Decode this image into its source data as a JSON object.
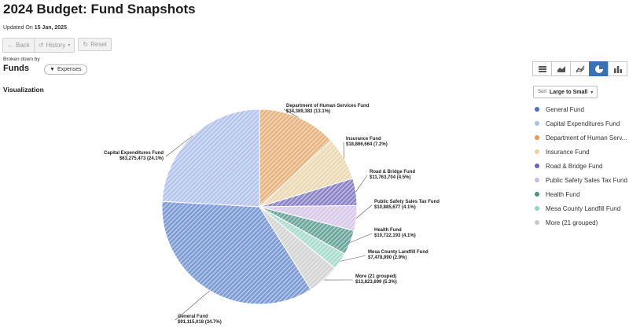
{
  "header": {
    "title": "2024 Budget: Fund Snapshots",
    "updated_prefix": "Updated On",
    "updated_date": "15 Jan, 2025"
  },
  "toolbar": {
    "back_label": "Back",
    "history_label": "History",
    "reset_label": "Reset"
  },
  "breakdown": {
    "label": "Broken down by",
    "value": "Funds",
    "filter_chip": "Expenses"
  },
  "visualization_label": "Visualization",
  "view_modes": [
    {
      "name": "table",
      "icon": "table-icon",
      "active": false
    },
    {
      "name": "area",
      "icon": "area-chart-icon",
      "active": false
    },
    {
      "name": "line",
      "icon": "line-chart-icon",
      "active": false
    },
    {
      "name": "pie",
      "icon": "pie-chart-icon",
      "active": true
    },
    {
      "name": "bar",
      "icon": "bar-chart-icon",
      "active": false
    }
  ],
  "sort": {
    "prefix": "Sort",
    "value": "Large to Small"
  },
  "legend": [
    "General Fund",
    "Capital Expenditures Fund",
    "Department of Human Serv...",
    "Insurance Fund",
    "Road & Bridge Fund",
    "Public Safety Sales Tax Fund",
    "Health Fund",
    "Mesa County Landfill Fund",
    "More (21 grouped)"
  ],
  "chart_data": {
    "type": "pie",
    "slices": [
      {
        "name": "General Fund",
        "value": 91115018,
        "label": "General Fund",
        "value_label": "$91,115,018 (34.7%)",
        "color": "#7c9ad4"
      },
      {
        "name": "Capital Expenditures Fund",
        "value": 63275473,
        "label": "Capital Expenditures Fund",
        "value_label": "$63,275,473 (24.1%)",
        "color": "#b4c4ec"
      },
      {
        "name": "Department of Human Services Fund",
        "value": 34389383,
        "label": "Department of Human Services Fund",
        "value_label": "$34,389,383 (13.1%)",
        "color": "#e7b47f"
      },
      {
        "name": "Insurance Fund",
        "value": 18866664,
        "label": "Insurance Fund",
        "value_label": "$18,866,664 (7.2%)",
        "color": "#ead9b2"
      },
      {
        "name": "Road & Bridge Fund",
        "value": 11763704,
        "label": "Road & Bridge Fund",
        "value_label": "$11,763,704 (4.5%)",
        "color": "#8b83c7"
      },
      {
        "name": "Public Safety Sales Tax Fund",
        "value": 10885677,
        "label": "Public Safety Sales Tax Fund",
        "value_label": "$10,885,677 (4.1%)",
        "color": "#d8c8ea"
      },
      {
        "name": "Health Fund",
        "value": 10722193,
        "label": "Health Fund",
        "value_label": "$10,722,193 (4.1%)",
        "color": "#6aa59b"
      },
      {
        "name": "Mesa County Landfill Fund",
        "value": 7478990,
        "label": "Mesa County Landfill Fund",
        "value_label": "$7,478,990 (2.9%)",
        "color": "#a9dccd"
      },
      {
        "name": "More (21 grouped)",
        "value": 13823699,
        "label": "More (21 grouped)",
        "value_label": "$13,823,699 (5.3%)",
        "color": "#d3d3d3"
      }
    ],
    "legend_colors": [
      "#4d6fb4",
      "#a9bde8",
      "#e49b55",
      "#e7d3a9",
      "#6e63b3",
      "#cdb9e3",
      "#4f8f86",
      "#92d2c0",
      "#c9c9c9"
    ]
  }
}
